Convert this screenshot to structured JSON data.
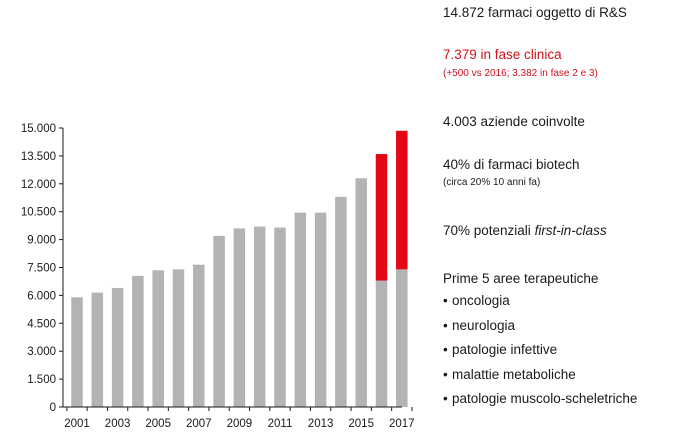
{
  "chart_data": {
    "type": "bar",
    "stacked": true,
    "categories": [
      "2001",
      "2002",
      "2003",
      "2004",
      "2005",
      "2006",
      "2007",
      "2008",
      "2009",
      "2010",
      "2011",
      "2012",
      "2013",
      "2014",
      "2015",
      "2016",
      "2017"
    ],
    "x_tick_labels": [
      "2001",
      "2003",
      "2005",
      "2007",
      "2009",
      "2011",
      "2013",
      "2015",
      "2017"
    ],
    "series": [
      {
        "values": [
          5900,
          6150,
          6400,
          7050,
          7350,
          7400,
          7650,
          9200,
          9600,
          9700,
          9650,
          10450,
          10450,
          11300,
          12300,
          6800,
          7400
        ],
        "color": "#b3b3b3"
      },
      {
        "values": [
          0,
          0,
          0,
          0,
          0,
          0,
          0,
          0,
          0,
          0,
          0,
          0,
          0,
          0,
          0,
          6800,
          7450
        ],
        "color": "#e30613"
      }
    ],
    "ylim": [
      0,
      15000
    ],
    "y_ticks": [
      0,
      1500,
      3000,
      4500,
      6000,
      7500,
      9000,
      10500,
      12000,
      13500,
      15000
    ],
    "y_tick_labels": [
      "0",
      "1.500",
      "3.000",
      "4.500",
      "6.000",
      "7.500",
      "9.000",
      "10.500",
      "12.000",
      "13.500",
      "15.000"
    ],
    "title": "",
    "xlabel": "",
    "ylabel": "",
    "grid": false,
    "legend": "none"
  },
  "stats": {
    "total": "14.872 farmaci oggetto di R&S",
    "clinical": "7.379 in fase clinica",
    "clinical_note": "(+500 vs 2016; 3.382 in fase 2 e 3)",
    "companies": "4.003 aziende coinvolte",
    "biotech": "40% di farmaci biotech",
    "biotech_note": "(circa 20% 10 anni fa)",
    "first_in_class_prefix": "70% potenziali ",
    "first_in_class_em": "first-in-class",
    "areas_title": "Prime 5 aree terapeutiche",
    "bullet": "•",
    "areas": [
      "oncologia",
      "neurologia",
      "patologie infettive",
      "malattie metaboliche",
      "patologie muscolo-scheletriche"
    ]
  },
  "colors": {
    "accent": "#d0121b",
    "bar_gray": "#b3b3b3",
    "bar_red": "#e30613",
    "text": "#1a1a1a"
  }
}
